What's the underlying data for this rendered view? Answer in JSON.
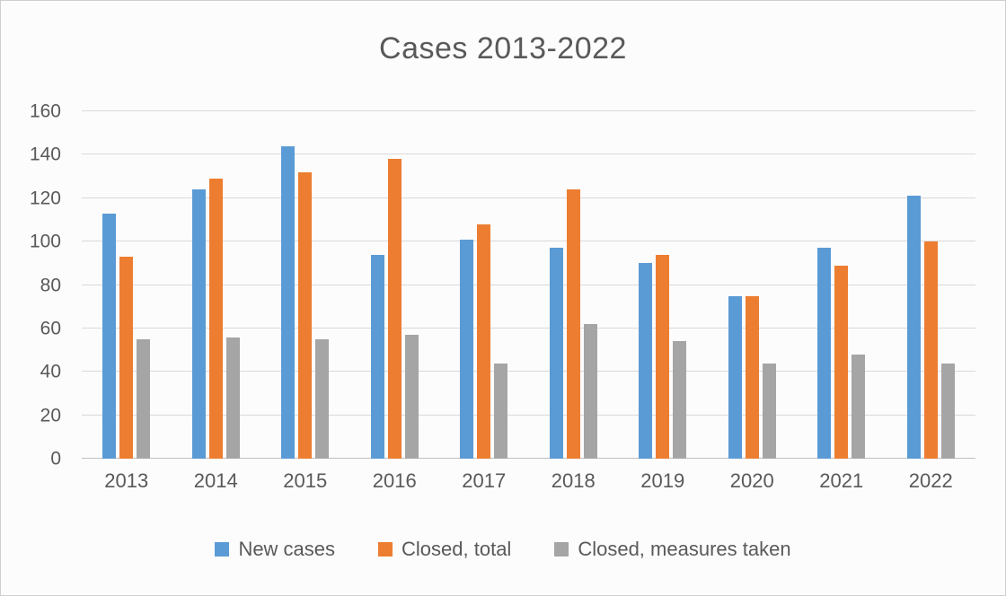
{
  "chart_data": {
    "type": "bar",
    "title": "Cases 2013-2022",
    "categories": [
      "2013",
      "2014",
      "2015",
      "2016",
      "2017",
      "2018",
      "2019",
      "2020",
      "2021",
      "2022"
    ],
    "series": [
      {
        "name": "New cases",
        "color": "#5b9bd5",
        "values": [
          113,
          124,
          144,
          94,
          101,
          97,
          90,
          75,
          97,
          121
        ]
      },
      {
        "name": "Closed, total",
        "color": "#ed7d31",
        "values": [
          93,
          129,
          132,
          138,
          108,
          124,
          94,
          75,
          89,
          100
        ]
      },
      {
        "name": "Closed, measures taken",
        "color": "#a5a5a5",
        "values": [
          55,
          56,
          55,
          57,
          44,
          62,
          54,
          44,
          48,
          44
        ]
      }
    ],
    "xlabel": "",
    "ylabel": "",
    "ylim": [
      0,
      160
    ],
    "yticks": [
      0,
      20,
      40,
      60,
      80,
      100,
      120,
      140,
      160
    ],
    "grid": true,
    "legend_position": "bottom"
  },
  "colors": {
    "background": "#fcfcfc",
    "border": "#cfcfcf",
    "gridline": "#d9d9d9",
    "baseline": "#bfbfbf",
    "text": "#595959"
  }
}
